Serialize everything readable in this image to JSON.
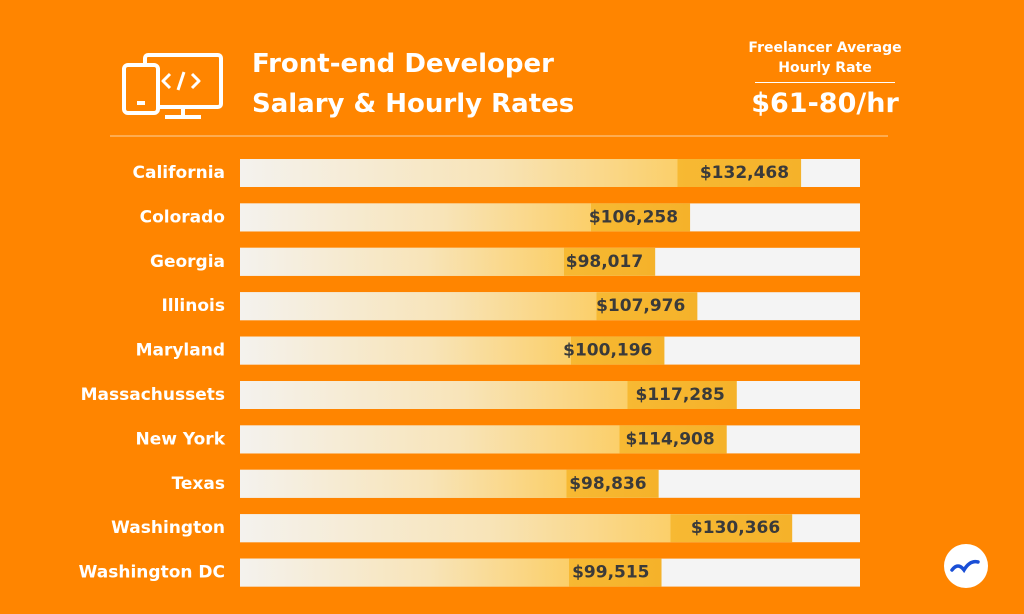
{
  "chart_data": {
    "type": "bar",
    "orientation": "horizontal",
    "title": "Front-end Developer Salary & Hourly Rates",
    "annotation": {
      "label": "Freelancer Average Hourly Rate",
      "text": "$61-80/hr"
    },
    "categories": [
      "California",
      "Colorado",
      "Georgia",
      "Illinois",
      "Maryland",
      "Massachussets",
      "New York",
      "Texas",
      "Washington",
      "Washington DC"
    ],
    "values": [
      132468,
      106258,
      98017,
      107976,
      100196,
      117285,
      114908,
      98836,
      130366,
      99515
    ],
    "value_labels": [
      "$132,468",
      "$106,258",
      "$98,017",
      "$107,976",
      "$100,196",
      "$117,285",
      "$114,908",
      "$98,836",
      "$130,366",
      "$99,515"
    ],
    "color": "#f7b933"
  }
}
